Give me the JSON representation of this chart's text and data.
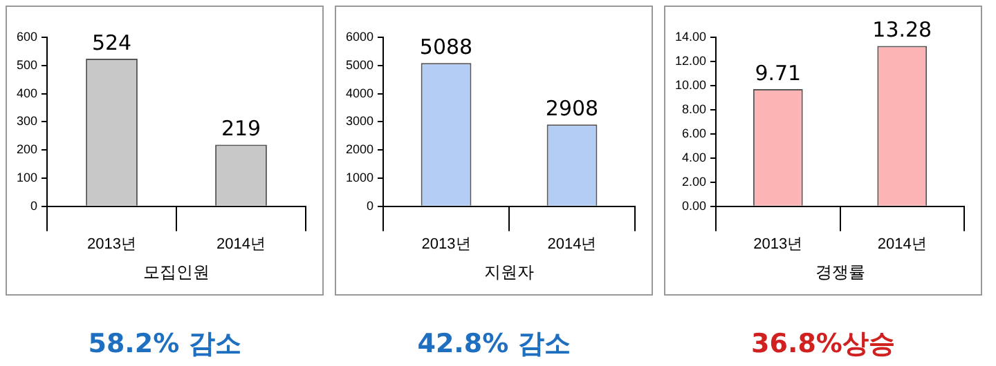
{
  "chart_data": [
    {
      "type": "bar",
      "xlabel": "모집인원",
      "categories": [
        "2013년",
        "2014년"
      ],
      "values": [
        524,
        219
      ],
      "color": "#c8c8c8",
      "ylim": [
        0,
        600
      ],
      "yticks": [
        0,
        100,
        200,
        300,
        400,
        500,
        600
      ],
      "grid": false,
      "legend": false,
      "data_labels": true,
      "annotations": [
        "58.2% 감소"
      ]
    },
    {
      "type": "bar",
      "xlabel": "지원자",
      "categories": [
        "2013년",
        "2014년"
      ],
      "values": [
        5088,
        2908
      ],
      "color": "#b4cdf5",
      "ylim": [
        0,
        6000
      ],
      "yticks": [
        0,
        1000,
        2000,
        3000,
        4000,
        5000,
        6000
      ],
      "grid": false,
      "legend": false,
      "data_labels": true,
      "annotations": [
        "42.8% 감소"
      ]
    },
    {
      "type": "bar",
      "xlabel": "경쟁률",
      "categories": [
        "2013년",
        "2014년"
      ],
      "values": [
        9.71,
        13.28
      ],
      "color": "#fcb4b4",
      "ylim": [
        0,
        14
      ],
      "yticks": [
        {
          "value": 0,
          "label": "0.00"
        },
        {
          "value": 2,
          "label": "2.00"
        },
        {
          "value": 4,
          "label": "4.00"
        },
        {
          "value": 6,
          "label": "6.00"
        },
        {
          "value": 8,
          "label": "8.00"
        },
        {
          "value": 10,
          "label": "10.00"
        },
        {
          "value": 12,
          "label": "12.00"
        },
        {
          "value": 14,
          "label": "14.00"
        }
      ],
      "grid": false,
      "legend": false,
      "data_labels": true,
      "annotations": [
        "36.8%상승"
      ]
    }
  ]
}
